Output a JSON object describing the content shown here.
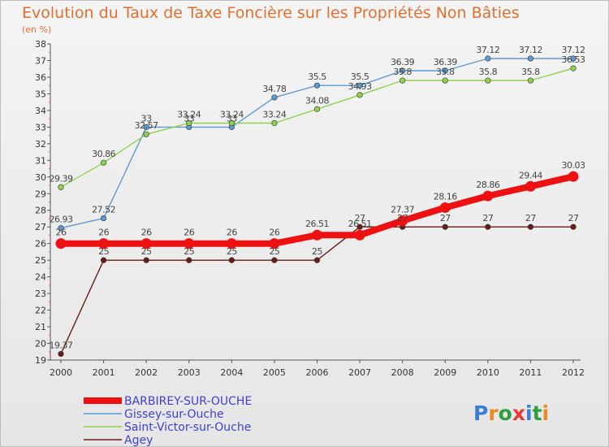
{
  "chart_data": {
    "type": "line",
    "title": "Evolution du Taux de Taxe Foncière sur les Propriétés Non Bâties",
    "subtitle": "(en %)",
    "xlabel": "",
    "ylabel": "",
    "ylim": [
      19,
      38
    ],
    "yticks": [
      19,
      20,
      21,
      22,
      23,
      24,
      25,
      26,
      27,
      28,
      29,
      30,
      31,
      32,
      33,
      34,
      35,
      36,
      37,
      38
    ],
    "categories": [
      "2000",
      "2001",
      "2002",
      "2003",
      "2004",
      "2005",
      "2006",
      "2007",
      "2008",
      "2009",
      "2010",
      "2011",
      "2012"
    ],
    "grid": false,
    "legend_position": "bottom-left",
    "series": [
      {
        "name": "BARBIREY-SUR-OUCHE",
        "color": "#ee1111",
        "emphasis": true,
        "values": [
          26,
          26,
          26,
          26,
          26,
          26,
          26.51,
          26.51,
          27.37,
          28.16,
          28.86,
          29.44,
          30.03
        ],
        "labels": [
          "26",
          "26",
          "26",
          "26",
          "26",
          "26",
          "26.51",
          "26.51",
          "27.37",
          "28.16",
          "28.86",
          "29.44",
          "30.03"
        ]
      },
      {
        "name": "Gissey-sur-Ouche",
        "color": "#5b9bd5",
        "values": [
          26.93,
          27.52,
          33,
          33,
          33,
          34.78,
          35.5,
          35.5,
          36.39,
          36.39,
          37.12,
          37.12,
          37.12
        ],
        "labels": [
          "26.93",
          "27.52",
          "33",
          "33",
          "33",
          "34.78",
          "35.5",
          "35.5",
          "36.39",
          "36.39",
          "37.12",
          "37.12",
          "37.12"
        ]
      },
      {
        "name": "Saint-Victor-sur-Ouche",
        "color": "#8fd14f",
        "values": [
          29.39,
          30.86,
          32.57,
          33.24,
          33.24,
          33.24,
          34.08,
          34.93,
          35.8,
          35.8,
          35.8,
          35.8,
          36.53
        ],
        "labels": [
          "29.39",
          "30.86",
          "32.57",
          "33.24",
          "33.24",
          "33.24",
          "34.08",
          "34.93",
          "35.8",
          "35.8",
          "35.8",
          "35.8",
          "36.53"
        ]
      },
      {
        "name": "Agey",
        "color": "#6b1a1a",
        "values": [
          19.37,
          25,
          25,
          25,
          25,
          25,
          25,
          27,
          27,
          27,
          27,
          27,
          27
        ],
        "labels": [
          "19.37",
          "25",
          "25",
          "25",
          "25",
          "25",
          "25",
          "27",
          "27",
          "27",
          "27",
          "27",
          "27"
        ]
      }
    ]
  },
  "branding": {
    "logo_text": "Proxiti",
    "logo_colors": [
      "#3a7fd6",
      "#f08a1c",
      "#2f9e3f",
      "#e53a3a",
      "#3a7fd6",
      "#2f9e3f",
      "#f08a1c"
    ]
  }
}
